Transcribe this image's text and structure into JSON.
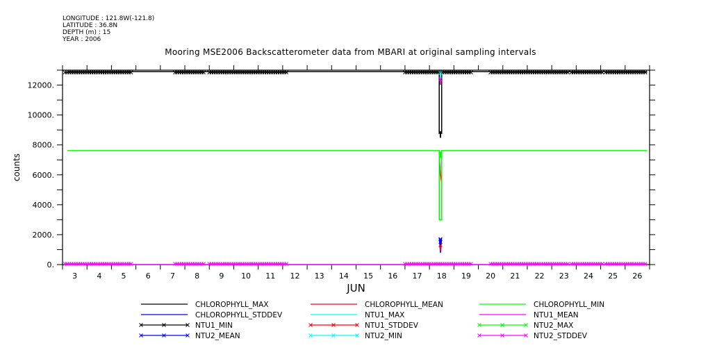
{
  "header": {
    "longitude": "LONGITUDE : 121.8W(-121.8)",
    "latitude": "LATITUDE : 36.8N",
    "depth": "DEPTH (m) : 15",
    "year": "YEAR : 2006"
  },
  "chart_data": {
    "type": "line",
    "title": "Mooring MSE2006 Backscatterometer data from MBARI at original sampling intervals",
    "xlabel": "JUN",
    "ylabel": "counts",
    "xlim": [
      3,
      27
    ],
    "ylim": [
      0,
      13000
    ],
    "x_tick_labels": [
      "3",
      "4",
      "5",
      "6",
      "7",
      "8",
      "9",
      "10",
      "11",
      "12",
      "13",
      "14",
      "15",
      "16",
      "17",
      "18",
      "19",
      "20",
      "21",
      "22",
      "23",
      "24",
      "25",
      "26"
    ],
    "y_tick_labels": [
      "0.",
      "2000.",
      "4000.",
      "6000.",
      "8000.",
      "10000.",
      "12000."
    ],
    "y_tick_values": [
      0,
      2000,
      4000,
      6000,
      8000,
      10000,
      12000
    ],
    "legend_placement": "bottom",
    "series": [
      {
        "name": "CHLOROPHYLL_MAX",
        "color": "#000000",
        "marker": false,
        "points": [
          [
            3.2,
            12900
          ],
          [
            18.4,
            12900
          ],
          [
            18.4,
            8800
          ],
          [
            18.5,
            8800
          ],
          [
            18.5,
            12900
          ],
          [
            26.9,
            12900
          ]
        ]
      },
      {
        "name": "CHLOROPHYLL_MEAN",
        "color": "#ff0000",
        "marker": false,
        "points": [
          [
            18.4,
            7200
          ],
          [
            18.45,
            6000
          ],
          [
            18.5,
            5500
          ]
        ]
      },
      {
        "name": "CHLOROPHYLL_MIN",
        "color": "#00ff00",
        "marker": false,
        "points": [
          [
            3.2,
            7620
          ],
          [
            18.4,
            7620
          ],
          [
            18.4,
            3000
          ],
          [
            18.5,
            3000
          ],
          [
            18.5,
            7620
          ],
          [
            26.9,
            7620
          ]
        ]
      },
      {
        "name": "CHLOROPHYLL_STDDEV",
        "color": "#0000ff",
        "marker": false,
        "points": [
          [
            18.4,
            1800
          ],
          [
            18.45,
            800
          ],
          [
            18.5,
            1800
          ]
        ]
      },
      {
        "name": "NTU1_MAX",
        "color": "#00ffff",
        "marker": false,
        "points": [
          [
            18.4,
            12900
          ],
          [
            18.5,
            12900
          ]
        ]
      },
      {
        "name": "NTU1_MEAN",
        "color": "#ff00ff",
        "marker": false,
        "points": [
          [
            3.2,
            0
          ],
          [
            26.9,
            0
          ]
        ]
      },
      {
        "name": "NTU1_MIN",
        "color": "#000000",
        "marker": true,
        "segments": [
          [
            3.1,
            5.8,
            12850
          ],
          [
            7.6,
            8.8,
            12850
          ],
          [
            9.0,
            12.2,
            12850
          ],
          [
            17.0,
            19.7,
            12850
          ],
          [
            20.5,
            23.7,
            12850
          ],
          [
            23.8,
            25.1,
            12850
          ],
          [
            25.2,
            26.9,
            12850
          ]
        ],
        "spike": [
          18.45,
          8850
        ]
      },
      {
        "name": "NTU1_STDDEV",
        "color": "#ff0000",
        "marker": true,
        "segments": [],
        "spike": [
          18.45,
          1300
        ]
      },
      {
        "name": "NTU2_MAX",
        "color": "#00ff00",
        "marker": true,
        "segments": [],
        "spike": [
          18.45,
          7500
        ]
      },
      {
        "name": "NTU2_MEAN",
        "color": "#0000ff",
        "marker": true,
        "segments": [],
        "spike": [
          18.45,
          1700
        ]
      },
      {
        "name": "NTU2_MIN",
        "color": "#00ffff",
        "marker": true,
        "segments": [],
        "spike": [
          18.45,
          12800
        ]
      },
      {
        "name": "NTU2_STDDEV",
        "color": "#ff00ff",
        "marker": true,
        "segments": [
          [
            3.1,
            5.8,
            50
          ],
          [
            7.6,
            8.8,
            50
          ],
          [
            9.0,
            12.2,
            50
          ],
          [
            17.0,
            19.7,
            50
          ],
          [
            20.5,
            23.7,
            50
          ],
          [
            23.8,
            25.1,
            50
          ],
          [
            25.2,
            26.9,
            50
          ]
        ],
        "spike": [
          18.45,
          12400
        ]
      }
    ]
  }
}
